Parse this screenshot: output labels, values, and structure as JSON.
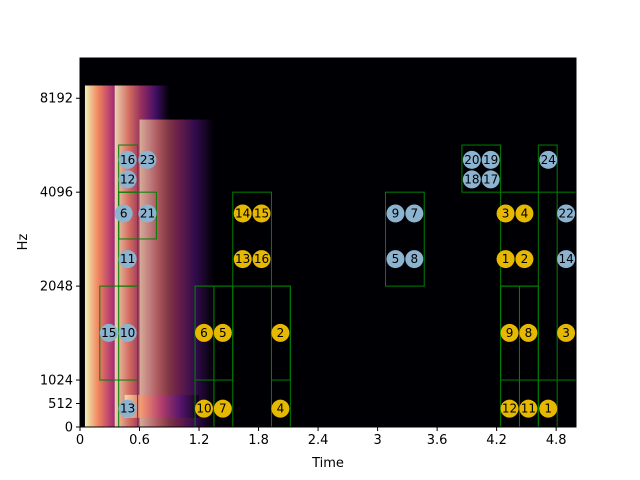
{
  "chart_data": {
    "type": "heatmap",
    "title": "",
    "xlabel": "Time",
    "ylabel": "Hz",
    "xlim": [
      0,
      5.0
    ],
    "y_scale": "log2",
    "ylim_display": [
      0,
      11025
    ],
    "x_ticks": [
      0,
      0.6,
      1.2,
      1.8,
      2.4,
      3.0,
      3.6,
      4.2,
      4.8
    ],
    "x_tick_labels": [
      "0",
      "0.6",
      "1.2",
      "1.8",
      "2.4",
      "3",
      "3.6",
      "4.2",
      "4.8"
    ],
    "y_ticks": [
      0,
      512,
      1024,
      2048,
      4096,
      8192
    ],
    "y_tick_labels": [
      "0",
      "512",
      "1024",
      "2048",
      "4096",
      "8192"
    ],
    "colors": {
      "background": "#000004",
      "box_stroke": "#008000",
      "marker_blue": "#8cb3cf",
      "marker_yellow": "#e6b800"
    },
    "boxes": [
      {
        "t0": 0.2,
        "t1": 0.58,
        "f0": 1024,
        "f1": 2048
      },
      {
        "t0": 0.39,
        "t1": 0.58,
        "f0": 0,
        "f1": 2048
      },
      {
        "t0": 0.39,
        "t1": 0.58,
        "f0": 2048,
        "f1": 4096
      },
      {
        "t0": 0.39,
        "t1": 0.77,
        "f0": 2900,
        "f1": 4096
      },
      {
        "t0": 0.39,
        "t1": 0.58,
        "f0": 4096,
        "f1": 5800
      },
      {
        "t0": 1.16,
        "t1": 1.35,
        "f0": 0,
        "f1": 2048
      },
      {
        "t0": 1.16,
        "t1": 1.54,
        "f0": 1024,
        "f1": 2048
      },
      {
        "t0": 1.35,
        "t1": 1.54,
        "f0": 0,
        "f1": 2048
      },
      {
        "t0": 1.54,
        "t1": 1.93,
        "f0": 2048,
        "f1": 4096
      },
      {
        "t0": 1.93,
        "t1": 2.12,
        "f0": 0,
        "f1": 2048
      },
      {
        "t0": 1.93,
        "t1": 2.12,
        "f0": 1024,
        "f1": 2048
      },
      {
        "t0": 3.08,
        "t1": 3.47,
        "f0": 2048,
        "f1": 4096
      },
      {
        "t0": 3.85,
        "t1": 4.24,
        "f0": 4096,
        "f1": 5800
      },
      {
        "t0": 4.24,
        "t1": 4.62,
        "f0": 1024,
        "f1": 2048
      },
      {
        "t0": 4.24,
        "t1": 4.62,
        "f0": 2048,
        "f1": 4096
      },
      {
        "t0": 4.24,
        "t1": 4.43,
        "f0": 0,
        "f1": 2048
      },
      {
        "t0": 4.43,
        "t1": 4.62,
        "f0": 0,
        "f1": 2048
      },
      {
        "t0": 4.62,
        "t1": 4.81,
        "f0": 0,
        "f1": 1024
      },
      {
        "t0": 4.62,
        "t1": 4.81,
        "f0": 4096,
        "f1": 5800
      },
      {
        "t0": 4.81,
        "t1": 5.0,
        "f0": 1024,
        "f1": 4096
      }
    ],
    "markers": [
      {
        "label": "16",
        "t": 0.48,
        "f": 5200,
        "color": "blue"
      },
      {
        "label": "23",
        "t": 0.68,
        "f": 5200,
        "color": "blue"
      },
      {
        "label": "12",
        "t": 0.48,
        "f": 4500,
        "color": "blue"
      },
      {
        "label": "6",
        "t": 0.44,
        "f": 3500,
        "color": "blue"
      },
      {
        "label": "21",
        "t": 0.68,
        "f": 3500,
        "color": "blue"
      },
      {
        "label": "11",
        "t": 0.48,
        "f": 2500,
        "color": "blue"
      },
      {
        "label": "15",
        "t": 0.29,
        "f": 1450,
        "color": "blue"
      },
      {
        "label": "10",
        "t": 0.48,
        "f": 1450,
        "color": "blue"
      },
      {
        "label": "13",
        "t": 0.48,
        "f": 400,
        "color": "blue"
      },
      {
        "label": "6",
        "t": 1.25,
        "f": 1450,
        "color": "yellow"
      },
      {
        "label": "5",
        "t": 1.44,
        "f": 1450,
        "color": "yellow"
      },
      {
        "label": "2",
        "t": 2.02,
        "f": 1450,
        "color": "yellow"
      },
      {
        "label": "10",
        "t": 1.25,
        "f": 400,
        "color": "yellow"
      },
      {
        "label": "7",
        "t": 1.44,
        "f": 400,
        "color": "yellow"
      },
      {
        "label": "4",
        "t": 2.02,
        "f": 400,
        "color": "yellow"
      },
      {
        "label": "14",
        "t": 1.64,
        "f": 3500,
        "color": "yellow"
      },
      {
        "label": "15",
        "t": 1.83,
        "f": 3500,
        "color": "yellow"
      },
      {
        "label": "13",
        "t": 1.64,
        "f": 2500,
        "color": "yellow"
      },
      {
        "label": "16",
        "t": 1.83,
        "f": 2500,
        "color": "yellow"
      },
      {
        "label": "9",
        "t": 3.18,
        "f": 3500,
        "color": "blue"
      },
      {
        "label": "7",
        "t": 3.37,
        "f": 3500,
        "color": "blue"
      },
      {
        "label": "5",
        "t": 3.18,
        "f": 2500,
        "color": "blue"
      },
      {
        "label": "8",
        "t": 3.37,
        "f": 2500,
        "color": "blue"
      },
      {
        "label": "20",
        "t": 3.95,
        "f": 5200,
        "color": "blue"
      },
      {
        "label": "19",
        "t": 4.14,
        "f": 5200,
        "color": "blue"
      },
      {
        "label": "18",
        "t": 3.95,
        "f": 4500,
        "color": "blue"
      },
      {
        "label": "17",
        "t": 4.14,
        "f": 4500,
        "color": "blue"
      },
      {
        "label": "24",
        "t": 4.72,
        "f": 5200,
        "color": "blue"
      },
      {
        "label": "3",
        "t": 4.29,
        "f": 3500,
        "color": "yellow"
      },
      {
        "label": "4",
        "t": 4.48,
        "f": 3500,
        "color": "yellow"
      },
      {
        "label": "22",
        "t": 4.9,
        "f": 3500,
        "color": "blue"
      },
      {
        "label": "1",
        "t": 4.29,
        "f": 2500,
        "color": "yellow"
      },
      {
        "label": "2",
        "t": 4.48,
        "f": 2500,
        "color": "yellow"
      },
      {
        "label": "14",
        "t": 4.9,
        "f": 2500,
        "color": "blue"
      },
      {
        "label": "9",
        "t": 4.33,
        "f": 1450,
        "color": "yellow"
      },
      {
        "label": "8",
        "t": 4.52,
        "f": 1450,
        "color": "yellow"
      },
      {
        "label": "3",
        "t": 4.9,
        "f": 1450,
        "color": "yellow"
      },
      {
        "label": "12",
        "t": 4.33,
        "f": 400,
        "color": "yellow"
      },
      {
        "label": "11",
        "t": 4.52,
        "f": 400,
        "color": "yellow"
      },
      {
        "label": "1",
        "t": 4.72,
        "f": 400,
        "color": "yellow"
      }
    ]
  }
}
